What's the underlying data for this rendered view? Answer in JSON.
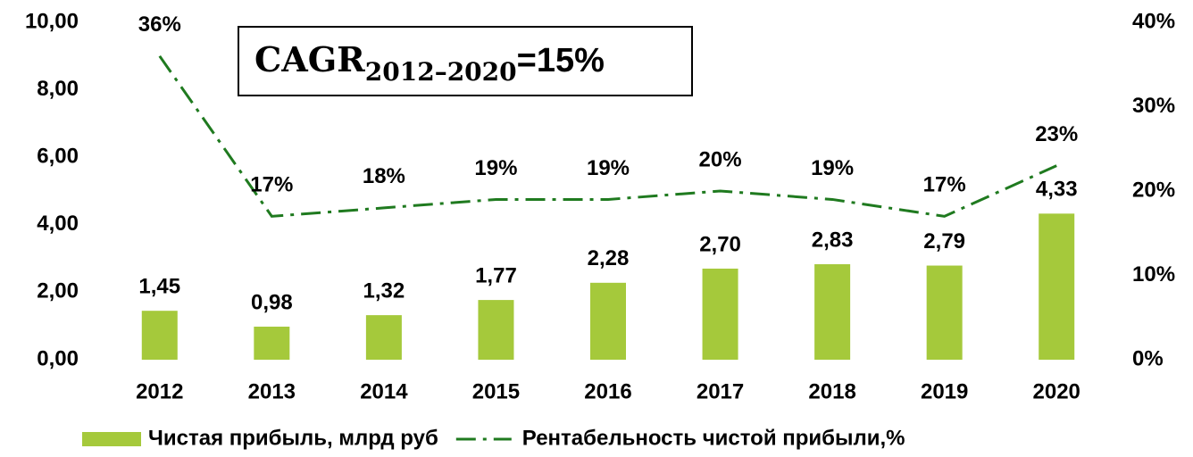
{
  "chart_data": {
    "type": "bar",
    "annotation": {
      "text": "CAGR",
      "subscript": "2012–2020",
      "suffix": "=15%"
    },
    "categories": [
      "2012",
      "2013",
      "2014",
      "2015",
      "2016",
      "2017",
      "2018",
      "2019",
      "2020"
    ],
    "series": [
      {
        "name": "Чистая прибыль, млрд руб",
        "type": "bar",
        "color": "#a5c93b",
        "values": [
          1.45,
          0.98,
          1.32,
          1.77,
          2.28,
          2.7,
          2.83,
          2.79,
          4.33
        ],
        "value_labels": [
          "1,45",
          "0,98",
          "1,32",
          "1,77",
          "2,28",
          "2,70",
          "2,83",
          "2,79",
          "4,33"
        ]
      },
      {
        "name": "Рентабельность чистой прибыли,%",
        "type": "line",
        "axis": "y2",
        "color": "#1f7a1f",
        "values": [
          36,
          17,
          18,
          19,
          19,
          20,
          19,
          17,
          23
        ],
        "value_labels": [
          "36%",
          "17%",
          "18%",
          "19%",
          "19%",
          "20%",
          "19%",
          "17%",
          "23%"
        ]
      }
    ],
    "ylim": [
      0,
      10
    ],
    "yticks": [
      {
        "value": 0,
        "label": "0,00"
      },
      {
        "value": 2,
        "label": "2,00"
      },
      {
        "value": 4,
        "label": "4,00"
      },
      {
        "value": 6,
        "label": "6,00"
      },
      {
        "value": 8,
        "label": "8,00"
      },
      {
        "value": 10,
        "label": "10,00"
      }
    ],
    "y2lim": [
      0,
      40
    ],
    "y2ticks": [
      {
        "value": 0,
        "label": "0%"
      },
      {
        "value": 10,
        "label": "10%"
      },
      {
        "value": 20,
        "label": "20%"
      },
      {
        "value": 30,
        "label": "30%"
      },
      {
        "value": 40,
        "label": "40%"
      }
    ],
    "grid": false
  }
}
